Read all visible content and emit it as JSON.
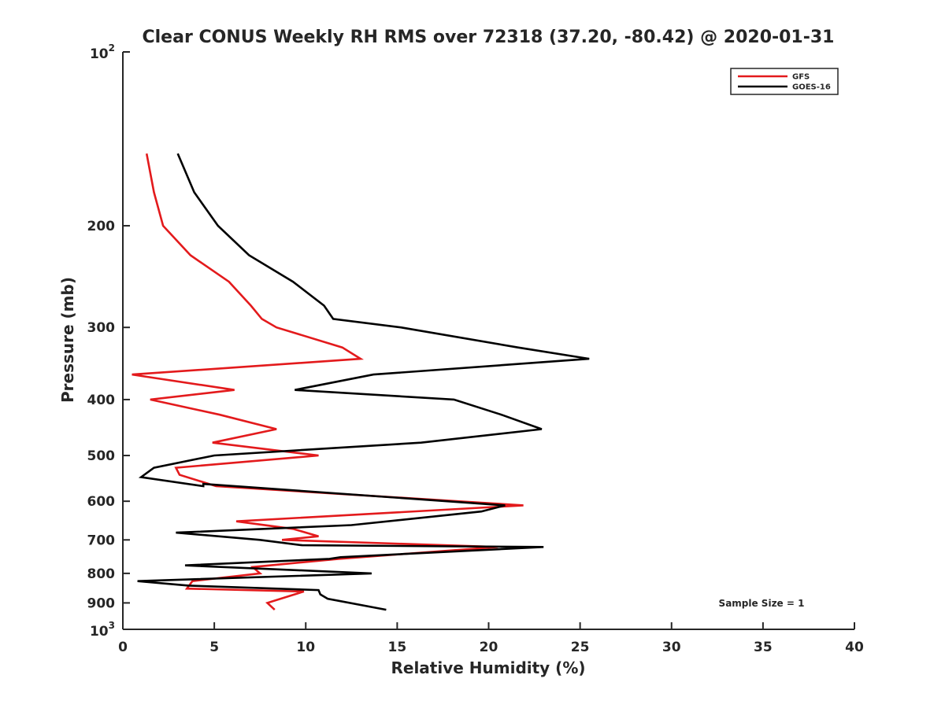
{
  "chart_data": {
    "type": "line",
    "title": "Clear CONUS Weekly RH RMS over 72318 (37.20, -80.42) @ 2020-01-31",
    "xlabel": "Relative Humidity (%)",
    "ylabel": "Pressure (mb)",
    "xlim": [
      0,
      40
    ],
    "ylim": [
      100,
      1000
    ],
    "y_scale": "log",
    "y_reversed": true,
    "grid": false,
    "legend_placement": "top-right",
    "x_ticks": [
      "0",
      "5",
      "10",
      "15",
      "20",
      "25",
      "30",
      "35",
      "40"
    ],
    "y_ticks": [
      {
        "value": 100,
        "base": "10",
        "exp": "2"
      },
      {
        "value": 200,
        "label": "200"
      },
      {
        "value": 300,
        "label": "300"
      },
      {
        "value": 400,
        "label": "400"
      },
      {
        "value": 500,
        "label": "500"
      },
      {
        "value": 600,
        "label": "600"
      },
      {
        "value": 700,
        "label": "700"
      },
      {
        "value": 800,
        "label": "800"
      },
      {
        "value": 900,
        "label": "900"
      },
      {
        "value": 1000,
        "base": "10",
        "exp": "3"
      }
    ],
    "series": [
      {
        "name": "GFS",
        "color": "#e31a1c",
        "points": [
          [
            1.3,
            150
          ],
          [
            1.7,
            175
          ],
          [
            2.2,
            200
          ],
          [
            3.7,
            225
          ],
          [
            5.8,
            250
          ],
          [
            7.0,
            275
          ],
          [
            7.6,
            290
          ],
          [
            8.4,
            300
          ],
          [
            12.0,
            325
          ],
          [
            13.0,
            340
          ],
          [
            0.5,
            362
          ],
          [
            6.1,
            385
          ],
          [
            1.5,
            400
          ],
          [
            5.3,
            425
          ],
          [
            8.4,
            450
          ],
          [
            4.9,
            475
          ],
          [
            10.7,
            500
          ],
          [
            2.9,
            525
          ],
          [
            3.1,
            540
          ],
          [
            5.1,
            565
          ],
          [
            21.9,
            610
          ],
          [
            6.2,
            650
          ],
          [
            9.3,
            670
          ],
          [
            10.7,
            690
          ],
          [
            8.7,
            700
          ],
          [
            20.5,
            720
          ],
          [
            11.8,
            755
          ],
          [
            7.1,
            780
          ],
          [
            7.5,
            800
          ],
          [
            3.8,
            825
          ],
          [
            3.5,
            850
          ],
          [
            9.9,
            860
          ],
          [
            7.9,
            900
          ],
          [
            8.3,
            925
          ]
        ]
      },
      {
        "name": "GOES-16",
        "color": "#000000",
        "points": [
          [
            3.0,
            150
          ],
          [
            3.9,
            175
          ],
          [
            5.2,
            200
          ],
          [
            6.9,
            225
          ],
          [
            9.3,
            250
          ],
          [
            11.0,
            275
          ],
          [
            11.5,
            290
          ],
          [
            15.2,
            300
          ],
          [
            21.6,
            325
          ],
          [
            25.5,
            340
          ],
          [
            13.7,
            362
          ],
          [
            9.4,
            385
          ],
          [
            18.1,
            400
          ],
          [
            20.7,
            425
          ],
          [
            22.9,
            450
          ],
          [
            16.3,
            475
          ],
          [
            5.0,
            500
          ],
          [
            1.7,
            525
          ],
          [
            1.0,
            545
          ],
          [
            4.4,
            565
          ],
          [
            4.4,
            560
          ],
          [
            20.9,
            610
          ],
          [
            19.6,
            625
          ],
          [
            12.5,
            660
          ],
          [
            2.9,
            680
          ],
          [
            7.5,
            700
          ],
          [
            9.8,
            715
          ],
          [
            23.0,
            720
          ],
          [
            11.9,
            750
          ],
          [
            11.3,
            755
          ],
          [
            3.4,
            775
          ],
          [
            13.6,
            800
          ],
          [
            0.8,
            825
          ],
          [
            3.6,
            840
          ],
          [
            10.7,
            855
          ],
          [
            10.8,
            870
          ],
          [
            11.2,
            885
          ],
          [
            14.4,
            925
          ]
        ]
      }
    ],
    "annotation": "Sample Size = 1"
  }
}
